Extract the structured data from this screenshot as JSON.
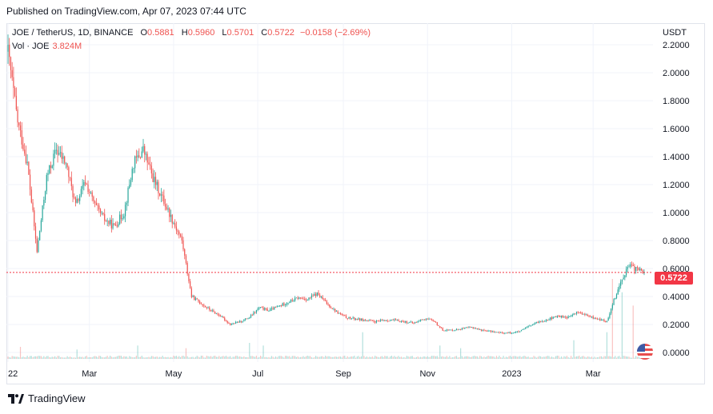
{
  "header": {
    "published": "Published on TradingView.com, Apr 07, 2023 07:44 UTC"
  },
  "legend": {
    "symbol": "JOE / TetherUS, 1D, BINANCE",
    "open_label": "O",
    "open": "0.5881",
    "high_label": "H",
    "high": "0.5960",
    "low_label": "L",
    "low": "0.5701",
    "close_label": "C",
    "close": "0.5722",
    "change": "−0.0158 (−2.69%)",
    "volume_label": "Vol · JOE",
    "volume": "3.824M"
  },
  "axis": {
    "currency": "USDT"
  },
  "last_price": "0.5722",
  "brand": {
    "name": "TradingView",
    "icon": "tradingview-logo-icon"
  },
  "colors": {
    "up": "#26a69a",
    "down": "#ef5350",
    "price_line": "#f23645"
  },
  "chart_data": {
    "type": "candlestick",
    "title": "JOE / TetherUS, 1D, BINANCE",
    "ylabel": "USDT",
    "ylim": [
      -0.05,
      2.25
    ],
    "y_ticks": [
      "2.2000",
      "2.0000",
      "1.8000",
      "1.6000",
      "1.4000",
      "1.2000",
      "1.0000",
      "0.8000",
      "0.6000",
      "0.4000",
      "0.2000",
      "0.0000"
    ],
    "y_tick_values": [
      2.2,
      2.0,
      1.8,
      1.6,
      1.4,
      1.2,
      1.0,
      0.8,
      0.6,
      0.4,
      0.2,
      0.0
    ],
    "x_ticks": [
      "22",
      "Mar",
      "May",
      "Jul",
      "Sep",
      "Nov",
      "2023",
      "Mar"
    ],
    "x_tick_dates": [
      "2022-01-01",
      "2022-03-01",
      "2022-05-01",
      "2022-07-01",
      "2022-09-01",
      "2022-11-01",
      "2023-01-01",
      "2023-03-01"
    ],
    "x_range": [
      "2022-01-01",
      "2023-04-07"
    ],
    "last_close": 0.5722,
    "grid": true,
    "series": [
      {
        "name": "JOE / TetherUS",
        "points": [
          [
            "2022-01-01",
            2.15
          ],
          [
            "2022-01-08",
            1.65
          ],
          [
            "2022-01-15",
            1.35
          ],
          [
            "2022-01-22",
            0.72
          ],
          [
            "2022-01-29",
            1.25
          ],
          [
            "2022-02-05",
            1.45
          ],
          [
            "2022-02-12",
            1.35
          ],
          [
            "2022-02-19",
            1.05
          ],
          [
            "2022-02-26",
            1.22
          ],
          [
            "2022-03-05",
            1.05
          ],
          [
            "2022-03-12",
            0.95
          ],
          [
            "2022-03-19",
            0.9
          ],
          [
            "2022-03-26",
            1.0
          ],
          [
            "2022-04-02",
            1.35
          ],
          [
            "2022-04-09",
            1.45
          ],
          [
            "2022-04-16",
            1.25
          ],
          [
            "2022-04-23",
            1.1
          ],
          [
            "2022-04-30",
            0.95
          ],
          [
            "2022-05-07",
            0.8
          ],
          [
            "2022-05-14",
            0.4
          ],
          [
            "2022-05-21",
            0.35
          ],
          [
            "2022-05-28",
            0.3
          ],
          [
            "2022-06-04",
            0.26
          ],
          [
            "2022-06-11",
            0.2
          ],
          [
            "2022-06-18",
            0.22
          ],
          [
            "2022-06-25",
            0.25
          ],
          [
            "2022-07-02",
            0.32
          ],
          [
            "2022-07-09",
            0.3
          ],
          [
            "2022-07-16",
            0.33
          ],
          [
            "2022-07-23",
            0.36
          ],
          [
            "2022-07-30",
            0.39
          ],
          [
            "2022-08-06",
            0.38
          ],
          [
            "2022-08-13",
            0.42
          ],
          [
            "2022-08-20",
            0.35
          ],
          [
            "2022-08-27",
            0.29
          ],
          [
            "2022-09-03",
            0.25
          ],
          [
            "2022-09-10",
            0.24
          ],
          [
            "2022-09-17",
            0.23
          ],
          [
            "2022-09-24",
            0.22
          ],
          [
            "2022-10-01",
            0.23
          ],
          [
            "2022-10-08",
            0.23
          ],
          [
            "2022-10-15",
            0.22
          ],
          [
            "2022-10-22",
            0.21
          ],
          [
            "2022-10-29",
            0.24
          ],
          [
            "2022-11-05",
            0.23
          ],
          [
            "2022-11-12",
            0.16
          ],
          [
            "2022-11-19",
            0.16
          ],
          [
            "2022-11-26",
            0.17
          ],
          [
            "2022-12-03",
            0.18
          ],
          [
            "2022-12-10",
            0.16
          ],
          [
            "2022-12-17",
            0.15
          ],
          [
            "2022-12-24",
            0.14
          ],
          [
            "2022-12-31",
            0.14
          ],
          [
            "2023-01-07",
            0.15
          ],
          [
            "2023-01-14",
            0.19
          ],
          [
            "2023-01-21",
            0.22
          ],
          [
            "2023-01-28",
            0.24
          ],
          [
            "2023-02-04",
            0.26
          ],
          [
            "2023-02-11",
            0.25
          ],
          [
            "2023-02-18",
            0.29
          ],
          [
            "2023-02-25",
            0.26
          ],
          [
            "2023-03-04",
            0.24
          ],
          [
            "2023-03-11",
            0.22
          ],
          [
            "2023-03-15",
            0.35
          ],
          [
            "2023-03-19",
            0.45
          ],
          [
            "2023-03-23",
            0.55
          ],
          [
            "2023-03-27",
            0.62
          ],
          [
            "2023-03-31",
            0.6
          ],
          [
            "2023-04-04",
            0.59
          ],
          [
            "2023-04-07",
            0.5722
          ]
        ]
      }
    ],
    "volume_series": {
      "name": "Vol · JOE",
      "units": "millions of JOE",
      "spikes": [
        [
          "2022-01-10",
          4.5
        ],
        [
          "2022-02-20",
          3.5
        ],
        [
          "2022-04-05",
          5.0
        ],
        [
          "2022-05-10",
          4.0
        ],
        [
          "2022-06-25",
          6.0
        ],
        [
          "2022-07-05",
          5.0
        ],
        [
          "2022-09-15",
          10.0
        ],
        [
          "2022-11-10",
          5.0
        ],
        [
          "2022-11-25",
          4.0
        ],
        [
          "2023-02-15",
          7.0
        ],
        [
          "2023-03-11",
          10.0
        ],
        [
          "2023-03-15",
          30.0
        ],
        [
          "2023-03-22",
          25.0
        ],
        [
          "2023-03-30",
          20.0
        ]
      ],
      "baseline": 0.8
    }
  }
}
